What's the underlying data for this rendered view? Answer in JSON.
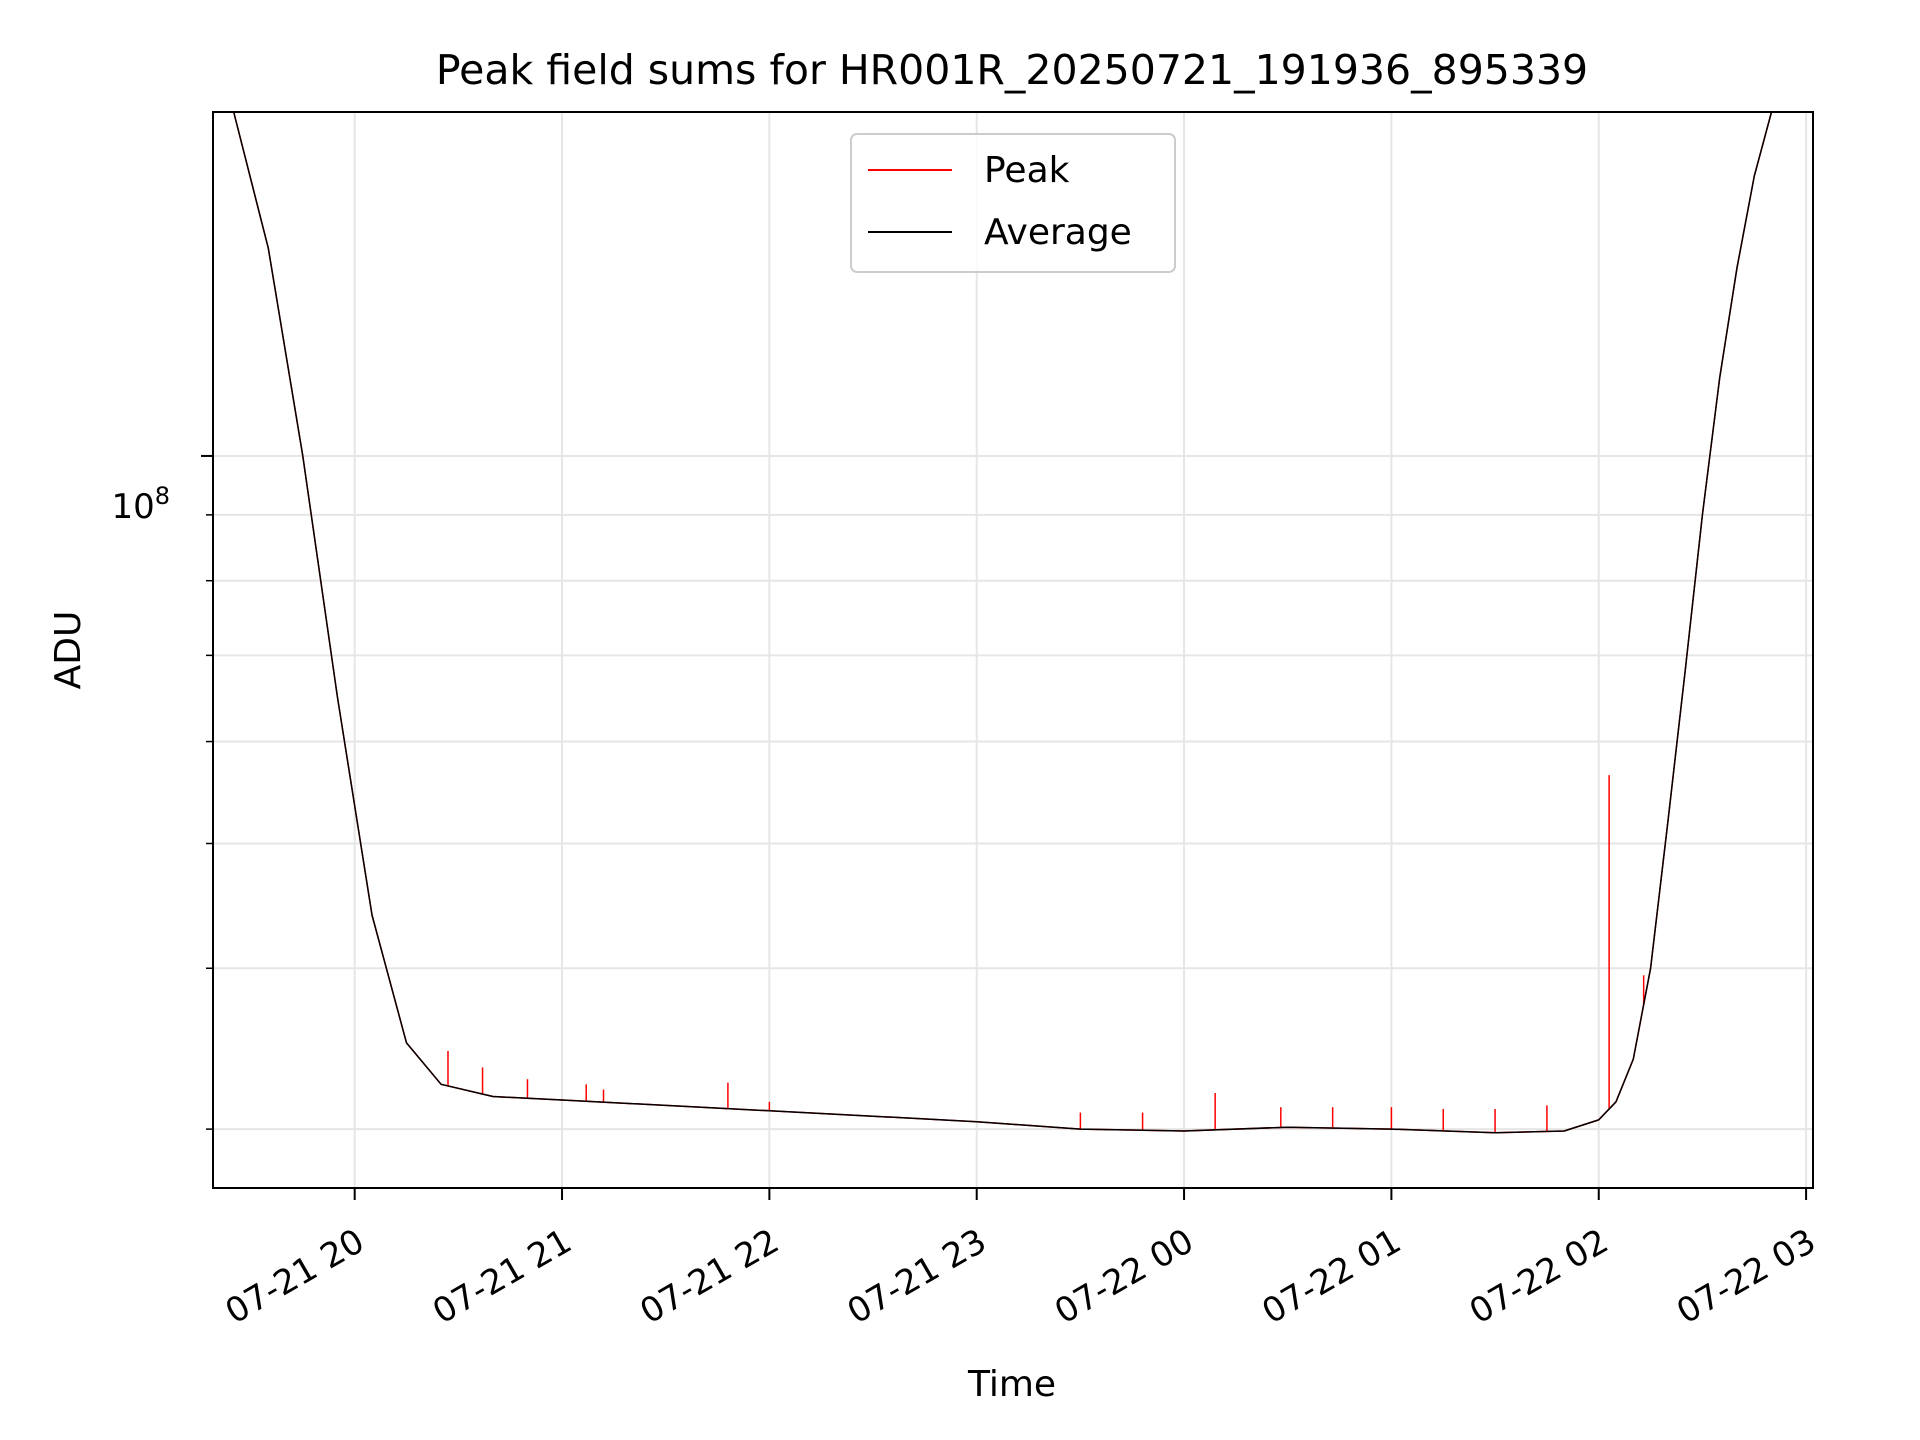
{
  "chart_data": {
    "type": "line",
    "title": "Peak field sums for HR001R_20250721_191936_895339",
    "xlabel": "Time",
    "ylabel": "ADU",
    "y_scale": "log",
    "y_tick_label": "10",
    "y_tick_exponent": "8",
    "x_tick_labels": [
      "07-21 20",
      "07-21 21",
      "07-21 22",
      "07-21 23",
      "07-22 00",
      "07-22 01",
      "07-22 02",
      "07-22 03"
    ],
    "x_ticks": [
      "2025-07-21 20:00",
      "2025-07-21 21:00",
      "2025-07-21 22:00",
      "2025-07-21 23:00",
      "2025-07-22 00:00",
      "2025-07-22 01:00",
      "2025-07-22 02:00",
      "2025-07-22 03:00"
    ],
    "xlim": [
      "2025-07-21 19:19",
      "2025-07-22 03:02"
    ],
    "ylim": [
      27000000,
      185000000
    ],
    "y_minor_ticks": [
      30000000,
      40000000,
      50000000,
      60000000,
      70000000,
      80000000,
      90000000,
      200000000
    ],
    "grid": true,
    "legend": "upper center",
    "series": [
      {
        "name": "Peak",
        "color": "#ff0000",
        "x": [
          "2025-07-21 19:19",
          "2025-07-21 19:25",
          "2025-07-21 19:35",
          "2025-07-21 19:45",
          "2025-07-21 19:55",
          "2025-07-21 20:05",
          "2025-07-21 20:15",
          "2025-07-21 20:25",
          "2025-07-21 20:40",
          "2025-07-21 21:00",
          "2025-07-21 21:30",
          "2025-07-21 22:00",
          "2025-07-21 22:30",
          "2025-07-21 23:00",
          "2025-07-21 23:30",
          "2025-07-22 00:00",
          "2025-07-22 00:30",
          "2025-07-22 01:00",
          "2025-07-22 01:30",
          "2025-07-22 01:50",
          "2025-07-22 02:00",
          "2025-07-22 02:05",
          "2025-07-22 02:10",
          "2025-07-22 02:15",
          "2025-07-22 02:20",
          "2025-07-22 02:25",
          "2025-07-22 02:30",
          "2025-07-22 02:35",
          "2025-07-22 02:40",
          "2025-07-22 02:45",
          "2025-07-22 02:50",
          "2025-07-22 02:55"
        ],
        "values": [
          185000000,
          185000000,
          145000000,
          100000000,
          65000000,
          44000000,
          35000000,
          32500000,
          31800000,
          31600000,
          31300000,
          31000000,
          30700000,
          30400000,
          30000000,
          29900000,
          30100000,
          30000000,
          29800000,
          29900000,
          30500000,
          31500000,
          34000000,
          40000000,
          52000000,
          68000000,
          90000000,
          115000000,
          140000000,
          165000000,
          185000000,
          185000000
        ]
      },
      {
        "name": "Average",
        "color": "#000000",
        "x": [
          "2025-07-21 19:19",
          "2025-07-21 19:25",
          "2025-07-21 19:35",
          "2025-07-21 19:45",
          "2025-07-21 19:55",
          "2025-07-21 20:05",
          "2025-07-21 20:15",
          "2025-07-21 20:25",
          "2025-07-21 20:40",
          "2025-07-21 21:00",
          "2025-07-21 21:30",
          "2025-07-21 22:00",
          "2025-07-21 22:30",
          "2025-07-21 23:00",
          "2025-07-21 23:30",
          "2025-07-22 00:00",
          "2025-07-22 00:30",
          "2025-07-22 01:00",
          "2025-07-22 01:30",
          "2025-07-22 01:50",
          "2025-07-22 02:00",
          "2025-07-22 02:05",
          "2025-07-22 02:10",
          "2025-07-22 02:15",
          "2025-07-22 02:20",
          "2025-07-22 02:25",
          "2025-07-22 02:30",
          "2025-07-22 02:35",
          "2025-07-22 02:40",
          "2025-07-22 02:45",
          "2025-07-22 02:50",
          "2025-07-22 02:55"
        ],
        "values": [
          185000000,
          185000000,
          145000000,
          100000000,
          65000000,
          44000000,
          35000000,
          32500000,
          31800000,
          31600000,
          31300000,
          31000000,
          30700000,
          30400000,
          30000000,
          29900000,
          30100000,
          30000000,
          29800000,
          29900000,
          30500000,
          31500000,
          34000000,
          40000000,
          52000000,
          68000000,
          90000000,
          115000000,
          140000000,
          165000000,
          185000000,
          185000000
        ]
      }
    ],
    "peak_spikes": [
      {
        "x": "2025-07-21 20:27",
        "y": 34500000
      },
      {
        "x": "2025-07-21 20:37",
        "y": 33500000
      },
      {
        "x": "2025-07-21 20:50",
        "y": 32800000
      },
      {
        "x": "2025-07-21 21:07",
        "y": 32500000
      },
      {
        "x": "2025-07-21 21:12",
        "y": 32200000
      },
      {
        "x": "2025-07-21 21:48",
        "y": 32600000
      },
      {
        "x": "2025-07-21 22:00",
        "y": 31500000
      },
      {
        "x": "2025-07-21 23:30",
        "y": 30900000
      },
      {
        "x": "2025-07-21 23:48",
        "y": 30900000
      },
      {
        "x": "2025-07-22 00:09",
        "y": 32000000
      },
      {
        "x": "2025-07-22 00:28",
        "y": 31200000
      },
      {
        "x": "2025-07-22 00:43",
        "y": 31200000
      },
      {
        "x": "2025-07-22 01:00",
        "y": 31200000
      },
      {
        "x": "2025-07-22 01:15",
        "y": 31100000
      },
      {
        "x": "2025-07-22 01:30",
        "y": 31100000
      },
      {
        "x": "2025-07-22 01:45",
        "y": 31300000
      },
      {
        "x": "2025-07-22 02:03",
        "y": 56500000
      },
      {
        "x": "2025-07-22 02:08",
        "y": 33000000
      },
      {
        "x": "2025-07-22 02:13",
        "y": 39500000
      }
    ]
  }
}
